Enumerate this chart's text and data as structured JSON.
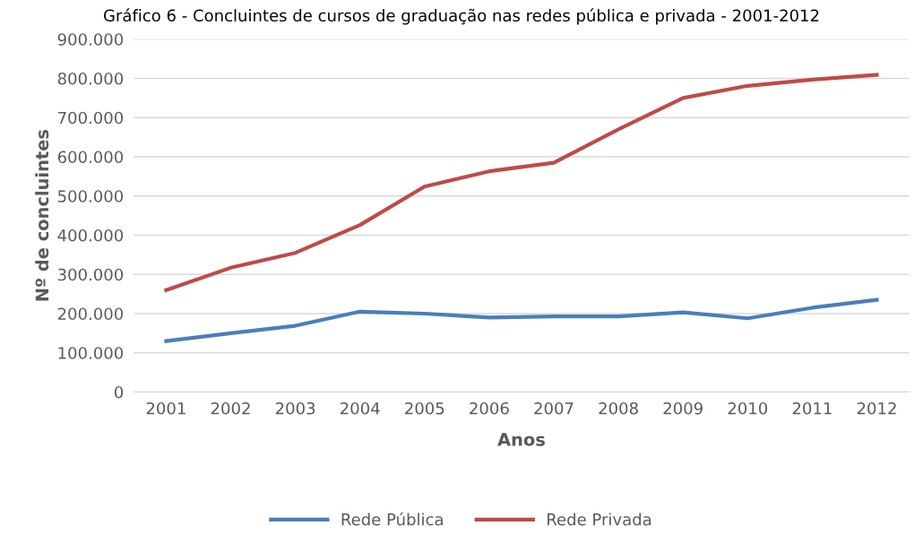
{
  "chart_data": {
    "type": "line",
    "title": "Gráfico 6 - Concluintes de cursos de graduação nas redes pública e privada - 2001-2012",
    "xlabel": "Anos",
    "ylabel": "Nº de concluintes",
    "categories": [
      "2001",
      "2002",
      "2003",
      "2004",
      "2005",
      "2006",
      "2007",
      "2008",
      "2009",
      "2010",
      "2011",
      "2012"
    ],
    "series": [
      {
        "name": "Rede Pública",
        "color": "#4a7ebb",
        "values": [
          130000,
          150000,
          169000,
          205000,
          200000,
          190000,
          193000,
          193000,
          203000,
          188000,
          215000,
          235000
        ]
      },
      {
        "name": "Rede Privada",
        "color": "#be4b48",
        "values": [
          260000,
          317000,
          355000,
          426000,
          524000,
          563000,
          585000,
          670000,
          750000,
          781000,
          797000,
          809000
        ]
      }
    ],
    "ylim": [
      0,
      900000
    ],
    "yticks": [
      0,
      {
        "value": 100000,
        "label": "100.000"
      },
      {
        "value": 200000,
        "label": "200.000"
      },
      {
        "value": 300000,
        "label": "300.000"
      },
      {
        "value": 400000,
        "label": "400.000"
      },
      {
        "value": 500000,
        "label": "500.000"
      },
      {
        "value": 600000,
        "label": "600.000"
      },
      {
        "value": 700000,
        "label": "700.000"
      },
      {
        "value": 800000,
        "label": "800.000"
      },
      {
        "value": 900000,
        "label": "900.000"
      }
    ],
    "grid": "y",
    "legend": "bottom",
    "marker": "none",
    "line_style": "solid"
  }
}
